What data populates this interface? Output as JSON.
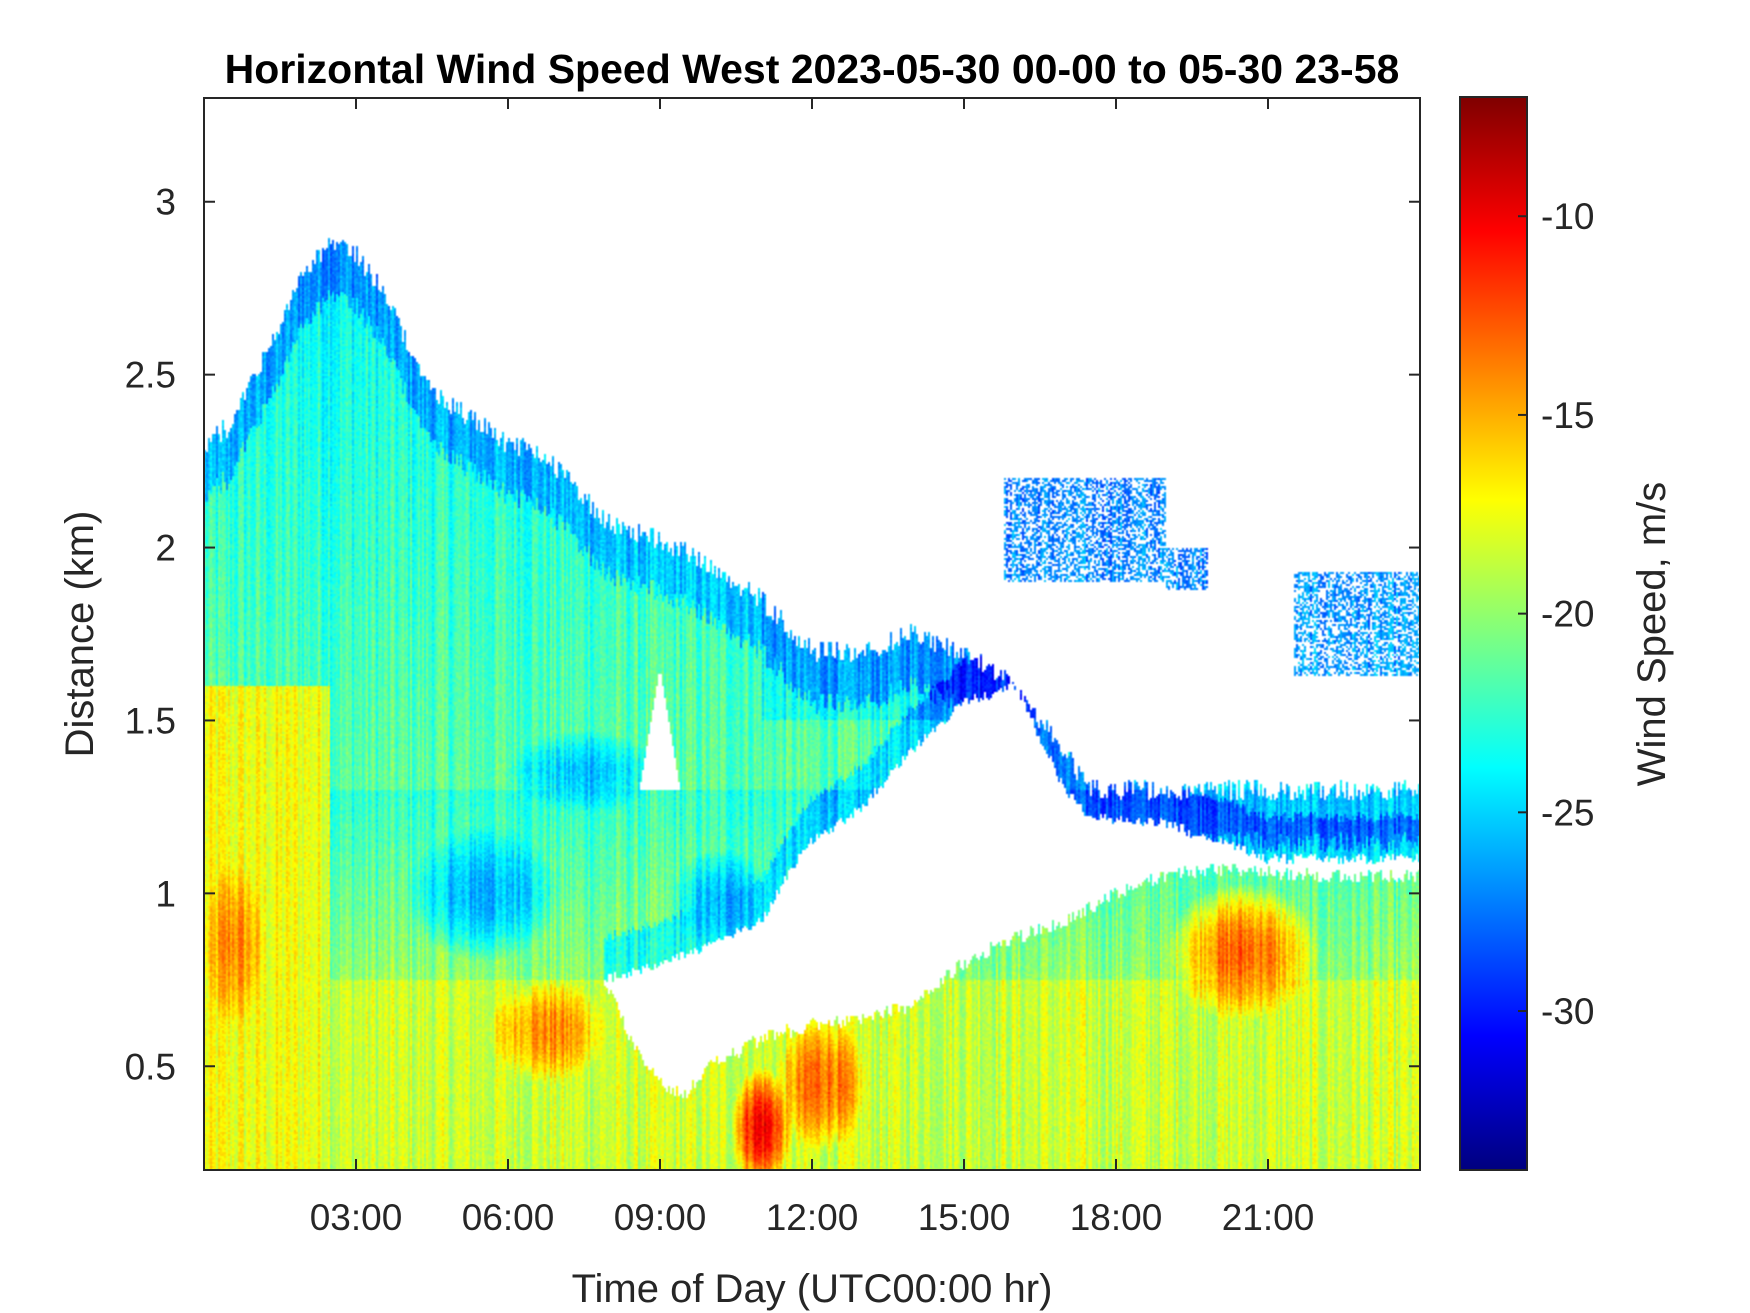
{
  "chart_data": {
    "type": "heatmap",
    "title": "Horizontal Wind Speed West 2023-05-30 00-00 to 05-30 23-58",
    "xlabel": "Time of Day (UTC00:00 hr)",
    "ylabel": "Distance (km)",
    "colorbar_label": "Wind Speed, m/s",
    "xlim": [
      0,
      24
    ],
    "ylim": [
      0.2,
      3.3
    ],
    "clim": [
      -34,
      -7
    ],
    "x_ticks": [
      {
        "value": 3,
        "label": "03:00"
      },
      {
        "value": 6,
        "label": "06:00"
      },
      {
        "value": 9,
        "label": "09:00"
      },
      {
        "value": 12,
        "label": "12:00"
      },
      {
        "value": 15,
        "label": "15:00"
      },
      {
        "value": 18,
        "label": "18:00"
      },
      {
        "value": 21,
        "label": "21:00"
      }
    ],
    "y_ticks": [
      {
        "value": 0.5,
        "label": "0.5"
      },
      {
        "value": 1,
        "label": "1"
      },
      {
        "value": 1.5,
        "label": "1.5"
      },
      {
        "value": 2,
        "label": "2"
      },
      {
        "value": 2.5,
        "label": "2.5"
      },
      {
        "value": 3,
        "label": "3"
      }
    ],
    "colorbar_ticks": [
      {
        "value": -10,
        "label": "-10"
      },
      {
        "value": -15,
        "label": "-15"
      },
      {
        "value": -20,
        "label": "-20"
      },
      {
        "value": -25,
        "label": "-25"
      },
      {
        "value": -30,
        "label": "-30"
      }
    ],
    "colormap": "jet",
    "colormap_stops": [
      "#00007f",
      "#0000ff",
      "#007fff",
      "#00ffff",
      "#7fff7f",
      "#ffff00",
      "#ff7f00",
      "#ff0000",
      "#7f0000"
    ],
    "data_top_km": [
      [
        0,
        2.3
      ],
      [
        0.5,
        2.35
      ],
      [
        1,
        2.5
      ],
      [
        1.5,
        2.65
      ],
      [
        2,
        2.8
      ],
      [
        2.5,
        2.88
      ],
      [
        3,
        2.85
      ],
      [
        3.5,
        2.75
      ],
      [
        4,
        2.6
      ],
      [
        4.5,
        2.45
      ],
      [
        5,
        2.4
      ],
      [
        5.5,
        2.35
      ],
      [
        6,
        2.3
      ],
      [
        6.5,
        2.28
      ],
      [
        7,
        2.22
      ],
      [
        7.5,
        2.15
      ],
      [
        8,
        2.07
      ],
      [
        9,
        2.02
      ],
      [
        10,
        1.95
      ],
      [
        11,
        1.85
      ],
      [
        12,
        1.7
      ],
      [
        13,
        1.7
      ],
      [
        14,
        1.75
      ],
      [
        15,
        1.7
      ],
      [
        16,
        1.6
      ],
      [
        16.5,
        1.5
      ],
      [
        17.5,
        1.3
      ]
    ],
    "valley_bottom_km": [
      [
        7.9,
        0.75
      ],
      [
        8.5,
        0.55
      ],
      [
        9,
        0.45
      ],
      [
        9.5,
        0.42
      ],
      [
        10,
        0.5
      ],
      [
        11,
        0.58
      ],
      [
        12,
        0.62
      ],
      [
        13,
        0.64
      ],
      [
        14,
        0.68
      ],
      [
        15,
        0.8
      ],
      [
        16,
        0.87
      ],
      [
        17,
        0.92
      ],
      [
        18,
        1.0
      ],
      [
        19,
        1.05
      ],
      [
        20,
        1.07
      ],
      [
        22,
        1.05
      ],
      [
        24,
        1.05
      ]
    ],
    "valley_top_km": [
      [
        7.9,
        0.75
      ],
      [
        9,
        0.8
      ],
      [
        10,
        0.85
      ],
      [
        11,
        0.92
      ],
      [
        11.5,
        1.05
      ],
      [
        12,
        1.15
      ],
      [
        13,
        1.25
      ],
      [
        14,
        1.42
      ],
      [
        15,
        1.55
      ],
      [
        16,
        1.6
      ],
      [
        17,
        1.3
      ],
      [
        17.5,
        1.22
      ],
      [
        19,
        1.2
      ],
      [
        21,
        1.1
      ],
      [
        24,
        1.1
      ]
    ],
    "high_patches": [
      {
        "t": [
          15.8,
          19
        ],
        "d": [
          1.9,
          2.2
        ],
        "value": -25.5
      },
      {
        "t": [
          19,
          19.8
        ],
        "d": [
          1.88,
          2.0
        ],
        "value": -25
      },
      {
        "t": [
          21.5,
          24
        ],
        "d": [
          1.63,
          1.93
        ],
        "value": -25
      }
    ],
    "notch": {
      "t": [
        8.6,
        9.4
      ],
      "peak_km": 1.65,
      "base_km": 1.3,
      "apex_t": 9.0
    },
    "warm_regions": [
      {
        "t": 11.0,
        "d": 0.32,
        "rt": 0.6,
        "rd": 0.18,
        "value": -10
      },
      {
        "t": 12.2,
        "d": 0.45,
        "rt": 0.9,
        "rd": 0.2,
        "value": -13
      },
      {
        "t": 0.6,
        "d": 0.85,
        "rt": 0.6,
        "rd": 0.25,
        "value": -14
      },
      {
        "t": 20.5,
        "d": 0.83,
        "rt": 1.5,
        "rd": 0.2,
        "value": -13
      },
      {
        "t": 6.8,
        "d": 0.6,
        "rt": 1.2,
        "rd": 0.15,
        "value": -14
      }
    ],
    "cool_regions": [
      {
        "t": 5.5,
        "d": 1.0,
        "rt": 1.5,
        "rd": 0.2,
        "value": -26
      },
      {
        "t": 10.2,
        "d": 0.98,
        "rt": 1.0,
        "rd": 0.15,
        "value": -26
      },
      {
        "t": 7.5,
        "d": 1.35,
        "rt": 1.5,
        "rd": 0.12,
        "value": -25.5
      }
    ]
  }
}
